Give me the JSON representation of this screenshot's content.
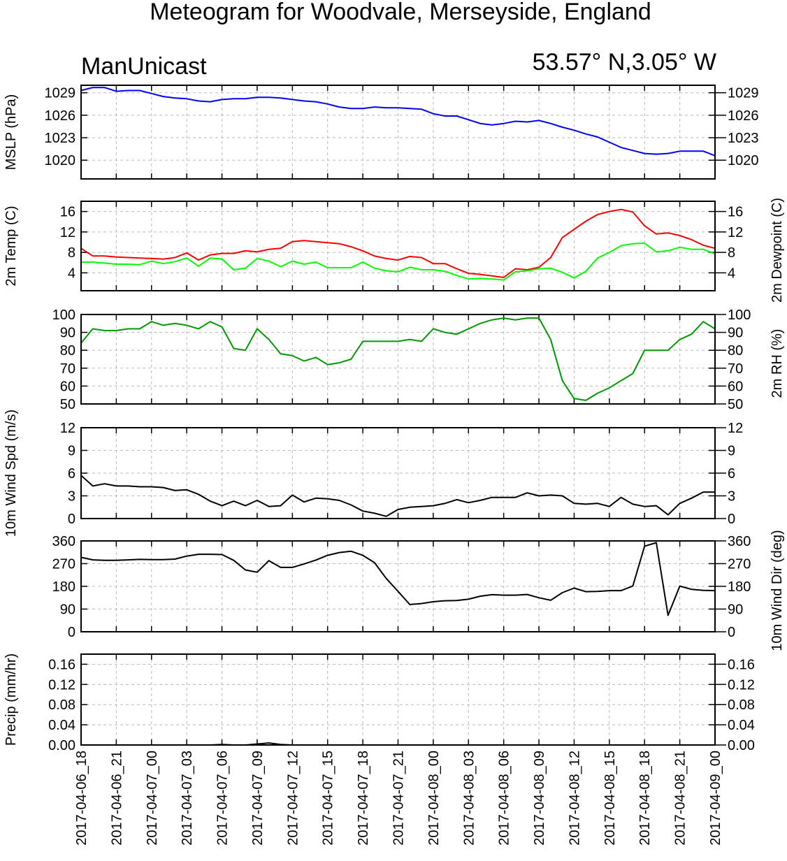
{
  "title": "Meteogram for Woodvale, Merseyside, England",
  "subtitle_left": "ManUnicast",
  "subtitle_right": "53.57° N,3.05° W",
  "time_labels": [
    "2017-04-06_18",
    "2017-04-06_21",
    "2017-04-07_00",
    "2017-04-07_03",
    "2017-04-07_06",
    "2017-04-07_09",
    "2017-04-07_12",
    "2017-04-07_15",
    "2017-04-07_18",
    "2017-04-07_21",
    "2017-04-08_00",
    "2017-04-08_03",
    "2017-04-08_06",
    "2017-04-08_09",
    "2017-04-08_12",
    "2017-04-08_15",
    "2017-04-08_18",
    "2017-04-08_21",
    "2017-04-09_00"
  ],
  "chart_data": [
    {
      "type": "line",
      "ylabel_left": "MSLP (hPa)",
      "ylabel_right": "",
      "ylim": [
        1017.5,
        1030
      ],
      "yticks": [
        1020,
        1023,
        1026,
        1029
      ],
      "tick_decimals": 0,
      "x_hours_from_first": [
        0,
        1,
        2,
        3,
        4,
        5,
        6,
        7,
        8,
        9,
        10,
        11,
        12,
        13,
        14,
        15,
        16,
        17,
        18,
        19,
        20,
        21,
        22,
        23,
        24,
        25,
        26,
        27,
        28,
        29,
        30,
        31,
        32,
        33,
        34,
        35,
        36,
        37,
        38,
        39,
        40,
        41,
        42,
        43,
        44,
        45,
        46,
        47,
        48,
        49,
        50,
        51,
        52,
        53,
        54
      ],
      "series": [
        {
          "color": "#0000ff",
          "values": [
            1029.3,
            1029.7,
            1029.7,
            1029.2,
            1029.3,
            1029.3,
            1028.9,
            1028.5,
            1028.3,
            1028.2,
            1027.9,
            1027.8,
            1028.1,
            1028.2,
            1028.2,
            1028.4,
            1028.4,
            1028.3,
            1028.1,
            1027.9,
            1027.8,
            1027.5,
            1027.1,
            1026.9,
            1026.9,
            1027.1,
            1027.0,
            1027.0,
            1026.9,
            1026.8,
            1026.2,
            1025.9,
            1025.9,
            1025.4,
            1024.9,
            1024.7,
            1024.9,
            1025.2,
            1025.1,
            1025.3,
            1024.9,
            1024.4,
            1024.0,
            1023.5,
            1023.1,
            1022.4,
            1021.7,
            1021.3,
            1020.9,
            1020.8,
            1020.9,
            1021.2,
            1021.2,
            1021.2,
            1020.6
          ]
        }
      ]
    },
    {
      "type": "line",
      "ylabel_left": "2m Temp (C)",
      "ylabel_right": "2m Dewpoint (C)",
      "ylim": [
        0.5,
        18
      ],
      "yticks": [
        4,
        8,
        12,
        16
      ],
      "tick_decimals": 0,
      "x_hours_from_first": [
        0,
        1,
        2,
        3,
        4,
        5,
        6,
        7,
        8,
        9,
        10,
        11,
        12,
        13,
        14,
        15,
        16,
        17,
        18,
        19,
        20,
        21,
        22,
        23,
        24,
        25,
        26,
        27,
        28,
        29,
        30,
        31,
        32,
        33,
        34,
        35,
        36,
        37,
        38,
        39,
        40,
        41,
        42,
        43,
        44,
        45,
        46,
        47,
        48,
        49,
        50,
        51,
        52,
        53,
        54
      ],
      "series": [
        {
          "color": "#ff0000",
          "values": [
            8.8,
            7.3,
            7.3,
            7.1,
            7.0,
            6.9,
            6.8,
            6.7,
            7.0,
            7.9,
            6.5,
            7.5,
            7.8,
            7.8,
            8.3,
            8.1,
            8.6,
            8.8,
            10.1,
            10.3,
            10.1,
            9.9,
            9.7,
            9.1,
            8.3,
            7.3,
            6.8,
            6.5,
            7.2,
            7.0,
            5.8,
            5.8,
            4.8,
            3.9,
            3.7,
            3.4,
            3.1,
            4.8,
            4.6,
            5.1,
            7.0,
            10.9,
            12.5,
            14.1,
            15.4,
            16.0,
            16.4,
            15.9,
            13.2,
            11.6,
            11.8,
            11.3,
            10.5,
            9.4,
            8.8
          ]
        },
        {
          "color": "#00ff00",
          "values": [
            6.1,
            6.1,
            5.9,
            5.7,
            5.7,
            5.6,
            6.3,
            5.8,
            6.2,
            6.9,
            5.3,
            6.9,
            6.7,
            4.6,
            4.9,
            6.8,
            6.3,
            5.2,
            6.3,
            5.7,
            6.1,
            5.0,
            5.0,
            5.0,
            6.1,
            4.9,
            4.4,
            4.2,
            5.1,
            4.6,
            4.6,
            4.3,
            3.5,
            2.8,
            2.9,
            2.8,
            2.6,
            4.2,
            4.4,
            4.8,
            4.9,
            4.1,
            3.0,
            4.3,
            6.9,
            8.0,
            9.3,
            9.7,
            9.8,
            8.1,
            8.3,
            9.0,
            8.6,
            8.6,
            7.7
          ]
        }
      ]
    },
    {
      "type": "line",
      "ylabel_left": "",
      "ylabel_right": "2m RH (%)",
      "ylim": [
        50,
        100
      ],
      "yticks": [
        50,
        60,
        70,
        80,
        90,
        100
      ],
      "tick_decimals": 0,
      "x_hours_from_first": [
        0,
        1,
        2,
        3,
        4,
        5,
        6,
        7,
        8,
        9,
        10,
        11,
        12,
        13,
        14,
        15,
        16,
        17,
        18,
        19,
        20,
        21,
        22,
        23,
        24,
        25,
        26,
        27,
        28,
        29,
        30,
        31,
        32,
        33,
        34,
        35,
        36,
        37,
        38,
        39,
        40,
        41,
        42,
        43,
        44,
        45,
        46,
        47,
        48,
        49,
        50,
        51,
        52,
        53,
        54
      ],
      "series": [
        {
          "color": "#009900",
          "values": [
            84,
            92,
            91,
            91,
            92,
            92,
            96,
            94,
            95,
            94,
            92,
            96,
            93,
            81,
            80,
            92,
            86,
            78,
            77,
            74,
            76,
            72,
            73,
            75,
            85,
            85,
            85,
            85,
            86,
            85,
            92,
            90,
            89,
            92,
            95,
            97,
            98,
            97,
            98,
            98,
            86,
            63,
            53,
            52,
            56,
            59,
            63,
            67,
            80,
            80,
            80,
            86,
            89,
            96,
            92
          ]
        }
      ]
    },
    {
      "type": "line",
      "ylabel_left": "10m Wind Spd (m/s)",
      "ylabel_right": "",
      "ylim": [
        0,
        12
      ],
      "yticks": [
        0,
        3,
        6,
        9,
        12
      ],
      "tick_decimals": 0,
      "x_hours_from_first": [
        0,
        1,
        2,
        3,
        4,
        5,
        6,
        7,
        8,
        9,
        10,
        11,
        12,
        13,
        14,
        15,
        16,
        17,
        18,
        19,
        20,
        21,
        22,
        23,
        24,
        25,
        26,
        27,
        28,
        29,
        30,
        31,
        32,
        33,
        34,
        35,
        36,
        37,
        38,
        39,
        40,
        41,
        42,
        43,
        44,
        45,
        46,
        47,
        48,
        49,
        50,
        51,
        52,
        53,
        54
      ],
      "series": [
        {
          "color": "#000000",
          "values": [
            5.7,
            4.3,
            4.6,
            4.3,
            4.3,
            4.2,
            4.2,
            4.1,
            3.7,
            3.8,
            3.2,
            2.3,
            1.7,
            2.3,
            1.7,
            2.4,
            1.6,
            1.7,
            3.1,
            2.2,
            2.7,
            2.6,
            2.4,
            1.8,
            1.0,
            0.7,
            0.3,
            1.2,
            1.5,
            1.6,
            1.7,
            2.0,
            2.5,
            2.1,
            2.4,
            2.8,
            2.8,
            2.8,
            3.4,
            3.0,
            3.1,
            3.0,
            2.0,
            1.9,
            2.0,
            1.6,
            2.8,
            1.9,
            1.6,
            1.7,
            0.5,
            2.0,
            2.7,
            3.5,
            3.5
          ]
        }
      ]
    },
    {
      "type": "line",
      "ylabel_left": "",
      "ylabel_right": "10m Wind Dir (deg)",
      "ylim": [
        0,
        360
      ],
      "yticks": [
        0,
        90,
        180,
        270,
        360
      ],
      "tick_decimals": 0,
      "x_hours_from_first": [
        0,
        1,
        2,
        3,
        4,
        5,
        6,
        7,
        8,
        9,
        10,
        11,
        12,
        13,
        14,
        15,
        16,
        17,
        18,
        19,
        20,
        21,
        22,
        23,
        24,
        25,
        26,
        27,
        28,
        29,
        30,
        31,
        32,
        33,
        34,
        35,
        36,
        37,
        38,
        39,
        40,
        41,
        42,
        43,
        44,
        45,
        46,
        47,
        48,
        49,
        50,
        51,
        52,
        53,
        54
      ],
      "series": [
        {
          "color": "#000000",
          "values": [
            295,
            285,
            283,
            283,
            285,
            287,
            286,
            286,
            288,
            300,
            307,
            307,
            306,
            283,
            245,
            236,
            282,
            255,
            255,
            269,
            284,
            303,
            314,
            319,
            303,
            274,
            211,
            160,
            108,
            112,
            119,
            123,
            124,
            129,
            141,
            147,
            145,
            145,
            148,
            135,
            125,
            155,
            173,
            159,
            160,
            163,
            163,
            181,
            339,
            353,
            65,
            181,
            168,
            164,
            163
          ]
        }
      ]
    },
    {
      "type": "line",
      "ylabel_left": "Precip (mm/hr)",
      "ylabel_right": "",
      "ylim": [
        0,
        0.18
      ],
      "yticks": [
        0,
        0.04,
        0.08,
        0.12,
        0.16
      ],
      "tick_decimals": 2,
      "x_hours_from_first": [
        0,
        1,
        2,
        3,
        4,
        5,
        6,
        7,
        8,
        9,
        10,
        11,
        12,
        13,
        14,
        15,
        16,
        17,
        18,
        19,
        20,
        21,
        22,
        23,
        24,
        25,
        26,
        27,
        28,
        29,
        30,
        31,
        32,
        33,
        34,
        35,
        36,
        37,
        38,
        39,
        40,
        41,
        42,
        43,
        44,
        45,
        46,
        47,
        48,
        49,
        50,
        51,
        52,
        53,
        54
      ],
      "series": [
        {
          "color": "#000000",
          "values": [
            0,
            0,
            0,
            0,
            0,
            0,
            0,
            0,
            0,
            0,
            0,
            0,
            0.001,
            0,
            0,
            0.002,
            0.004,
            0.001,
            0,
            0,
            0,
            0,
            0,
            0,
            0,
            0,
            0,
            0,
            0,
            0,
            0,
            0,
            0,
            0,
            0,
            0,
            0,
            0,
            0,
            0,
            0,
            0,
            0,
            0,
            0,
            0,
            0,
            0,
            0,
            0,
            0,
            0,
            0,
            0,
            0
          ]
        }
      ]
    }
  ]
}
